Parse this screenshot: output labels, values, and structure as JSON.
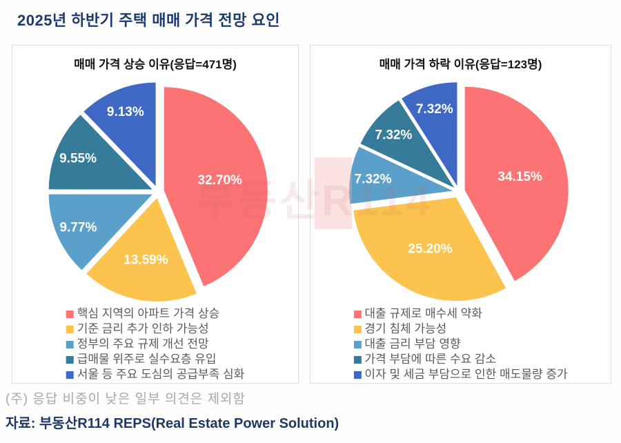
{
  "page": {
    "title": "2025년 하반기 주택 매매 가격 전망 요인",
    "note": "(주) 응답 비중이 낮은 일부 의견은 제외함",
    "source": "자료: 부동산R114 REPS(Real Estate Power Solution)",
    "watermark": "부동산R114"
  },
  "colors": {
    "title_navy": "#1D3A6D",
    "source_navy": "#1F3864",
    "note_gray": "#A8A8A8",
    "legend_text": "#5A5A5A",
    "panel_border": "#DCDCDC",
    "value_label": "#FFFFFF"
  },
  "chart_data": [
    {
      "type": "pie",
      "title": "매매 가격 상승 이유(응답=471명)",
      "legend_position": "bottom",
      "start_angle": "12-oclock, clockwise",
      "angles_note": "slice angles renormalized to full circle (values sum to 74.74%)",
      "slices": [
        {
          "label": "핵심 지역의 아파트 가격 상승",
          "value": 32.7,
          "value_label": "32.70%",
          "color": "#FB7373"
        },
        {
          "label": "기준 금리 추가 인하 가능성",
          "value": 13.59,
          "value_label": "13.59%",
          "color": "#FCC44F"
        },
        {
          "label": "정부의 주요 규제 개선 전망",
          "value": 9.77,
          "value_label": "9.77%",
          "color": "#5BA0CA"
        },
        {
          "label": "급매물 위주로 실수요층 유입",
          "value": 9.55,
          "value_label": "9.55%",
          "color": "#377B9B"
        },
        {
          "label": "서울 등 주요 도심의 공급부족 심화",
          "value": 9.13,
          "value_label": "9.13%",
          "color": "#3E68C4"
        }
      ]
    },
    {
      "type": "pie",
      "title": "매매 가격 하락 이유(응답=123명)",
      "legend_position": "bottom",
      "start_angle": "12-oclock, clockwise",
      "angles_note": "slice angles renormalized to full circle (values sum to 81.31%)",
      "slices": [
        {
          "label": "대출 규제로 매수세 약화",
          "value": 34.15,
          "value_label": "34.15%",
          "color": "#FB7373"
        },
        {
          "label": "경기 침체 가능성",
          "value": 25.2,
          "value_label": "25.20%",
          "color": "#FCC44F"
        },
        {
          "label": "대출 금리 부담 영향",
          "value": 7.32,
          "value_label": "7.32%",
          "color": "#5BA0CA"
        },
        {
          "label": "가격 부담에 따른 수요 감소",
          "value": 7.32,
          "value_label": "7.32%",
          "color": "#377B9B"
        },
        {
          "label": "이자 및 세금 부담으로 인한 매도물량 증가",
          "value": 7.32,
          "value_label": "7.32%",
          "color": "#3E68C4"
        }
      ]
    }
  ]
}
